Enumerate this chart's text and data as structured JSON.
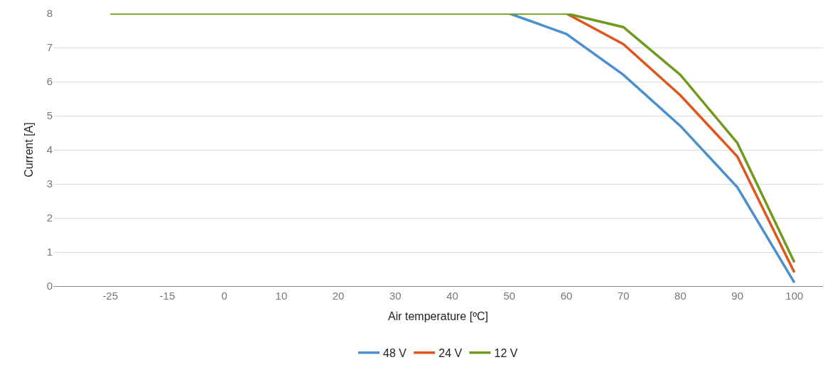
{
  "chart_data": {
    "type": "line",
    "xlabel": "Air temperature [ºC]",
    "ylabel": "Current [A]",
    "categories": [
      "-25",
      "-15",
      "0",
      "10",
      "20",
      "30",
      "40",
      "50",
      "60",
      "70",
      "80",
      "90",
      "100"
    ],
    "series": [
      {
        "name": "48 V",
        "color": "#4a90d0",
        "values": [
          null,
          null,
          null,
          null,
          null,
          null,
          null,
          8,
          7.4,
          6.2,
          4.7,
          2.9,
          0.1
        ]
      },
      {
        "name": "24 V",
        "color": "#e0551e",
        "values": [
          null,
          null,
          null,
          null,
          null,
          null,
          null,
          null,
          8,
          7.1,
          5.6,
          3.8,
          0.4
        ]
      },
      {
        "name": "12 V",
        "color": "#6f9a1c",
        "values": [
          8,
          8,
          8,
          8,
          8,
          8,
          8,
          8,
          8,
          7.6,
          6.2,
          4.2,
          0.7
        ]
      }
    ],
    "ylim": [
      0,
      8
    ],
    "yticks": [
      0,
      1,
      2,
      3,
      4,
      5,
      6,
      7,
      8
    ],
    "grid": "y",
    "legend": "bottom",
    "marker": "none",
    "line_style": "solid"
  }
}
